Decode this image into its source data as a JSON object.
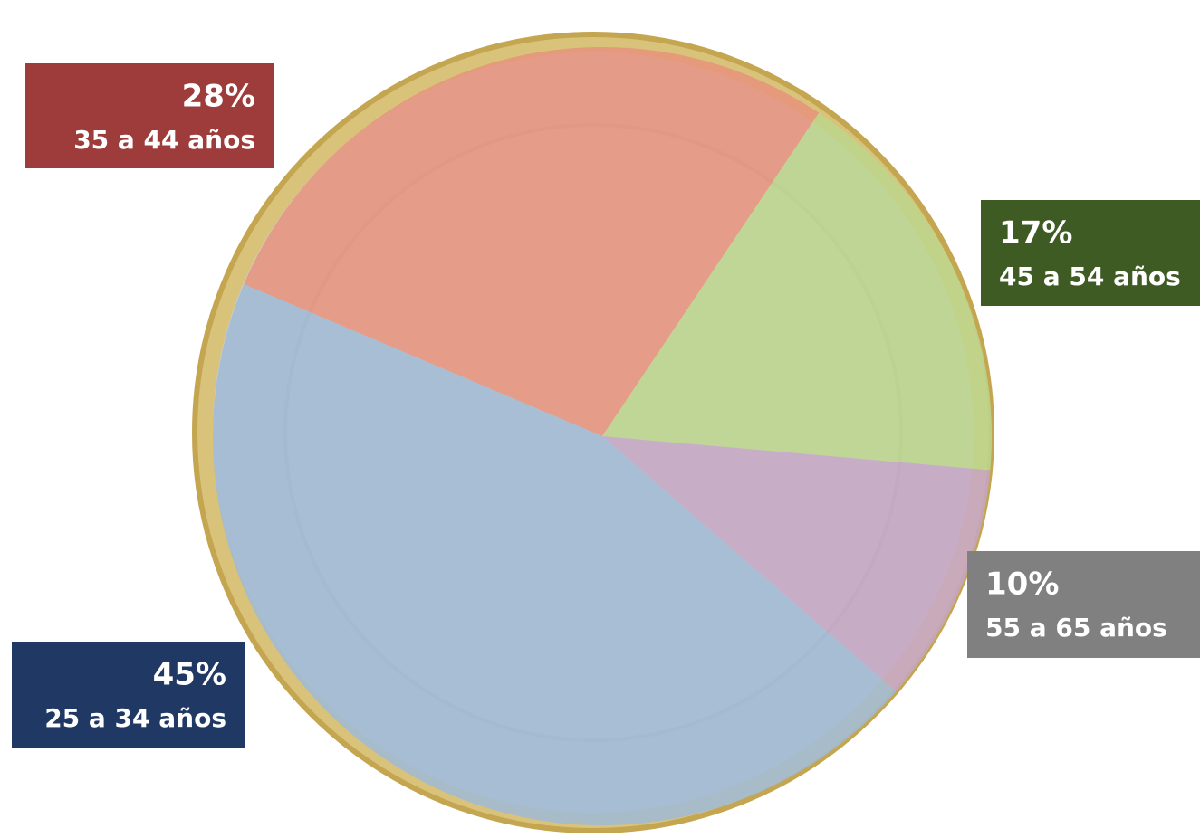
{
  "chart_data": {
    "type": "pie",
    "categories": [
      "35 a 44 años",
      "45 a 54 años",
      "55 a 65 años",
      "25 a 34 años"
    ],
    "values": [
      28,
      17,
      10,
      45
    ],
    "value_labels": [
      "28%",
      "17%",
      "10%",
      "45%"
    ],
    "colors": [
      "#e8937c",
      "#bcd68c",
      "#c6a6c6",
      "#9fbad6"
    ],
    "label_colors": [
      "#9e3b3b",
      "#3e5b24",
      "#808080",
      "#1f3864"
    ]
  }
}
